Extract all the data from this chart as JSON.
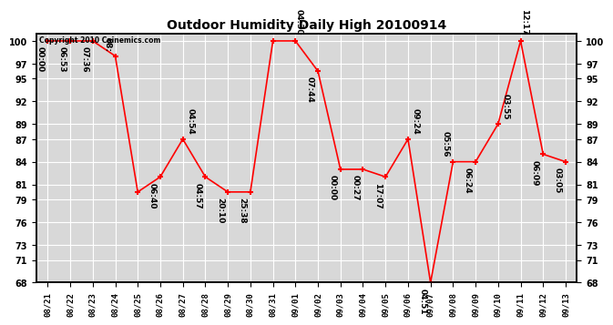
{
  "title": "Outdoor Humidity Daily High 20100914",
  "copyright": "Copyright 2010 Cainemics.com",
  "x_labels": [
    "08/21",
    "08/22",
    "08/23",
    "08/24",
    "08/25",
    "08/26",
    "08/27",
    "08/28",
    "08/29",
    "08/30",
    "08/31",
    "09/01",
    "09/02",
    "09/03",
    "09/04",
    "09/05",
    "09/06",
    "09/07",
    "09/08",
    "09/09",
    "09/10",
    "09/11",
    "09/12",
    "09/13"
  ],
  "y_values": [
    100,
    100,
    100,
    98,
    80,
    82,
    87,
    82,
    80,
    80,
    100,
    100,
    96,
    83,
    83,
    82,
    87,
    68,
    84,
    84,
    89,
    100,
    85,
    84
  ],
  "point_labels": [
    "00:00",
    "06:53",
    "07:36",
    "08:",
    "",
    "06:40",
    "04:54",
    "04:57",
    "20:10",
    "25:38",
    "",
    "04:30",
    "07:44",
    "00:00",
    "00:27",
    "17:07",
    "09:24",
    "04:51",
    "05:56",
    "06:24",
    "03:55",
    "12:17",
    "06:09",
    "03:05"
  ],
  "ylim_min": 68,
  "ylim_max": 101,
  "yticks": [
    68,
    71,
    73,
    76,
    79,
    81,
    84,
    87,
    89,
    92,
    95,
    97,
    100
  ],
  "line_color": "red",
  "marker_color": "red",
  "bg_color": "#d8d8d8",
  "grid_color": "white",
  "title_fontsize": 10,
  "label_fontsize": 6.5
}
